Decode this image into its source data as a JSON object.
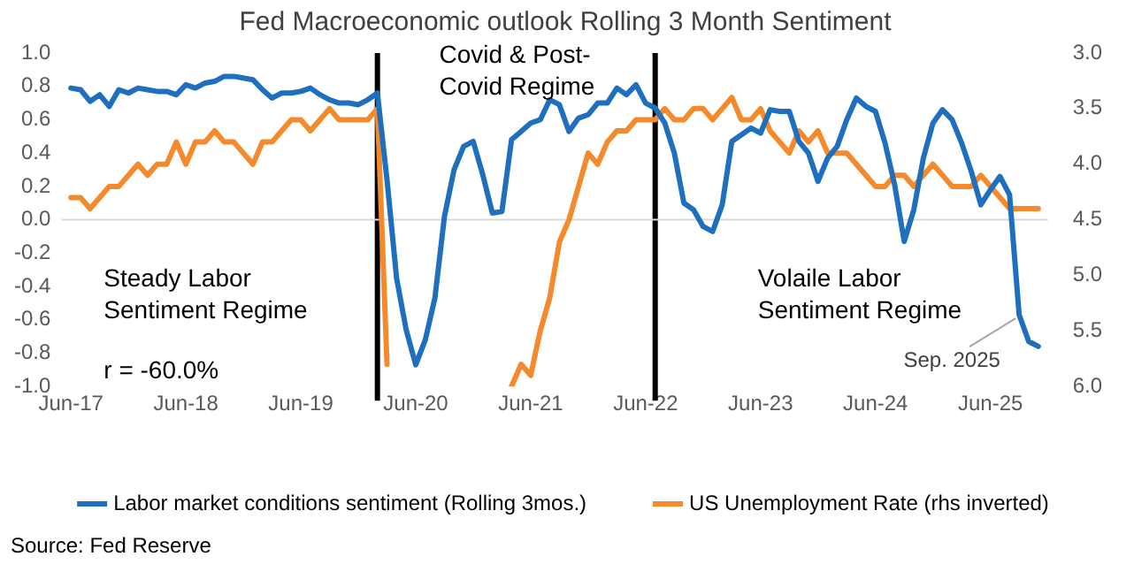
{
  "chart_data": {
    "type": "line",
    "title": "Fed Macroeconomic outlook Rolling 3 Month Sentiment",
    "x": [
      "2017-06",
      "2017-07",
      "2017-08",
      "2017-09",
      "2017-10",
      "2017-11",
      "2017-12",
      "2018-01",
      "2018-02",
      "2018-03",
      "2018-04",
      "2018-05",
      "2018-06",
      "2018-07",
      "2018-08",
      "2018-09",
      "2018-10",
      "2018-11",
      "2018-12",
      "2019-01",
      "2019-02",
      "2019-03",
      "2019-04",
      "2019-05",
      "2019-06",
      "2019-07",
      "2019-08",
      "2019-09",
      "2019-10",
      "2019-11",
      "2019-12",
      "2020-01",
      "2020-02",
      "2020-03",
      "2020-04",
      "2020-05",
      "2020-06",
      "2020-07",
      "2020-08",
      "2020-09",
      "2020-10",
      "2020-11",
      "2020-12",
      "2021-01",
      "2021-02",
      "2021-03",
      "2021-04",
      "2021-05",
      "2021-06",
      "2021-07",
      "2021-08",
      "2021-09",
      "2021-10",
      "2021-11",
      "2021-12",
      "2022-01",
      "2022-02",
      "2022-03",
      "2022-04",
      "2022-05",
      "2022-06",
      "2022-07",
      "2022-08",
      "2022-09",
      "2022-10",
      "2022-11",
      "2022-12",
      "2023-01",
      "2023-02",
      "2023-03",
      "2023-04",
      "2023-05",
      "2023-06",
      "2023-07",
      "2023-08",
      "2023-09",
      "2023-10",
      "2023-11",
      "2023-12",
      "2024-01",
      "2024-02",
      "2024-03",
      "2024-04",
      "2024-05",
      "2024-06",
      "2024-07",
      "2024-08",
      "2024-09",
      "2024-10",
      "2024-11",
      "2024-12",
      "2025-01",
      "2025-02",
      "2025-03",
      "2025-04",
      "2025-05",
      "2025-06",
      "2025-07",
      "2025-08",
      "2025-09",
      "2025-10",
      "2025-11"
    ],
    "series": [
      {
        "name": "Labor market conditions sentiment (Rolling 3mos.)",
        "color": "#1f6fbf",
        "values": [
          0.79,
          0.78,
          0.71,
          0.75,
          0.68,
          0.78,
          0.76,
          0.79,
          0.78,
          0.77,
          0.77,
          0.75,
          0.81,
          0.79,
          0.82,
          0.83,
          0.86,
          0.86,
          0.85,
          0.84,
          0.78,
          0.73,
          0.76,
          0.76,
          0.77,
          0.79,
          0.75,
          0.72,
          0.7,
          0.7,
          0.69,
          0.72,
          0.76,
          0.24,
          -0.35,
          -0.66,
          -0.87,
          -0.72,
          -0.47,
          0.02,
          0.3,
          0.44,
          0.47,
          0.27,
          0.04,
          0.05,
          0.48,
          0.53,
          0.58,
          0.6,
          0.72,
          0.69,
          0.53,
          0.61,
          0.63,
          0.7,
          0.7,
          0.79,
          0.75,
          0.81,
          0.7,
          0.67,
          0.58,
          0.4,
          0.1,
          0.06,
          -0.04,
          -0.07,
          0.09,
          0.47,
          0.51,
          0.55,
          0.52,
          0.66,
          0.65,
          0.65,
          0.47,
          0.4,
          0.23,
          0.37,
          0.44,
          0.6,
          0.73,
          0.68,
          0.65,
          0.46,
          0.21,
          -0.13,
          0.06,
          0.37,
          0.58,
          0.66,
          0.6,
          0.46,
          0.29,
          0.09,
          0.18,
          0.26,
          0.15,
          -0.57,
          -0.73,
          -0.76
        ]
      },
      {
        "name": "US Unemployment Rate (rhs inverted)",
        "color": "#f58a2c",
        "axis": "y2",
        "values": [
          4.3,
          4.3,
          4.4,
          4.3,
          4.2,
          4.2,
          4.1,
          4.0,
          4.1,
          4.0,
          4.0,
          3.8,
          4.0,
          3.8,
          3.8,
          3.7,
          3.8,
          3.8,
          3.9,
          4.0,
          3.8,
          3.8,
          3.7,
          3.6,
          3.6,
          3.7,
          3.6,
          3.5,
          3.6,
          3.6,
          3.6,
          3.6,
          3.5,
          5.8,
          null,
          null,
          null,
          null,
          null,
          null,
          null,
          null,
          null,
          null,
          null,
          null,
          6.0,
          5.8,
          5.9,
          5.5,
          5.2,
          4.7,
          4.5,
          4.2,
          3.9,
          4.0,
          3.8,
          3.7,
          3.7,
          3.6,
          3.6,
          3.6,
          3.5,
          3.6,
          3.6,
          3.5,
          3.5,
          3.6,
          3.5,
          3.4,
          3.6,
          3.6,
          3.5,
          3.7,
          3.8,
          3.9,
          3.7,
          3.8,
          3.7,
          3.9,
          3.9,
          3.9,
          4.0,
          4.1,
          4.2,
          4.2,
          4.1,
          4.1,
          4.2,
          4.1,
          4.0,
          4.1,
          4.2,
          4.2,
          4.2,
          4.1,
          4.2,
          4.3,
          4.4,
          4.4,
          4.4,
          4.4
        ]
      }
    ],
    "xlim": [
      "2017-05",
      "2025-12"
    ],
    "xticks": [
      {
        "value": "2017-06",
        "label": "Jun-17"
      },
      {
        "value": "2018-06",
        "label": "Jun-18"
      },
      {
        "value": "2019-06",
        "label": "Jun-19"
      },
      {
        "value": "2020-06",
        "label": "Jun-20"
      },
      {
        "value": "2021-06",
        "label": "Jun-21"
      },
      {
        "value": "2022-06",
        "label": "Jun-22"
      },
      {
        "value": "2023-06",
        "label": "Jun-23"
      },
      {
        "value": "2024-06",
        "label": "Jun-24"
      },
      {
        "value": "2025-06",
        "label": "Jun-25"
      }
    ],
    "ylim": [
      -1,
      1
    ],
    "yticks": [
      {
        "value": -1,
        "label": "-1.0"
      },
      -0.8,
      -0.6,
      -0.4,
      -0.2,
      {
        "value": 0,
        "label": "0.0"
      },
      0.2,
      0.4,
      0.6,
      0.8,
      {
        "value": 1,
        "label": "1.0"
      }
    ],
    "y2lim": [
      6,
      3
    ],
    "y2ticks": [
      {
        "value": 3,
        "label": "3.0"
      },
      3.5,
      {
        "value": 4,
        "label": "4.0"
      },
      4.5,
      {
        "value": 5,
        "label": "5.0"
      },
      5.5,
      {
        "value": 6,
        "label": "6.0"
      }
    ],
    "ref_lines": [
      {
        "axis": "x",
        "value": "2020-02",
        "color": "#000000"
      },
      {
        "axis": "x",
        "value": "2022-07",
        "color": "#000000"
      },
      {
        "axis": "y",
        "value": 0,
        "color": "#d9d9d9"
      }
    ],
    "annotations": [
      "Steady Labor Sentiment Regime",
      "Covid & Post-Covid Regime",
      "Volaile Labor Sentiment Regime",
      "r = -60.0%",
      {
        "text": "Sep. 2025",
        "x": "2025-09",
        "y": -0.57
      },
      "Source: Fed Reserve"
    ],
    "legend": "bottom",
    "marker": "none",
    "line_style": "solid"
  }
}
